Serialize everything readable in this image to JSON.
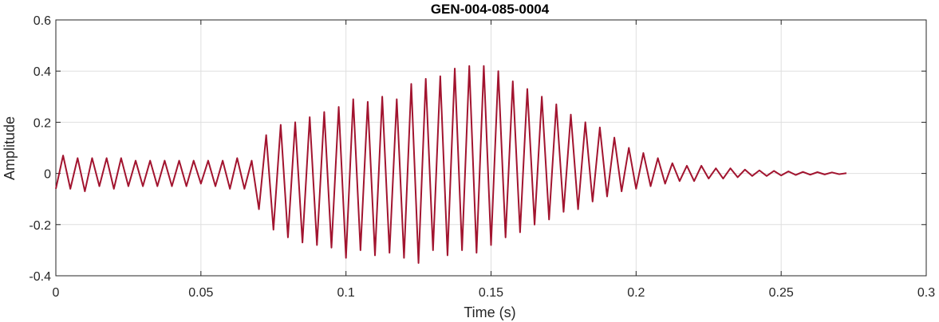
{
  "chart_data": {
    "type": "line",
    "title": "GEN-004-085-0004",
    "xlabel": "Time (s)",
    "ylabel": "Amplitude",
    "xlim": [
      0,
      0.3
    ],
    "ylim": [
      -0.4,
      0.6
    ],
    "xticks": [
      0,
      0.05,
      0.1,
      0.15,
      0.2,
      0.25,
      0.3
    ],
    "xtick_labels": [
      "0",
      "0.05",
      "0.1",
      "0.15",
      "0.2",
      "0.25",
      "0.3"
    ],
    "yticks": [
      -0.4,
      -0.2,
      0,
      0.2,
      0.4,
      0.6
    ],
    "ytick_labels": [
      "-0.4",
      "-0.2",
      "0",
      "0.2",
      "0.4",
      "0.6"
    ],
    "grid": true,
    "line_color": "#A2142F",
    "series": [
      {
        "x": [
          0.0,
          0.0025,
          0.005,
          0.0075,
          0.01,
          0.0125,
          0.015,
          0.0175,
          0.02,
          0.0225,
          0.025,
          0.0275,
          0.03,
          0.0325,
          0.035,
          0.0375,
          0.04,
          0.0425,
          0.045,
          0.0475,
          0.05,
          0.0525,
          0.055,
          0.0575,
          0.06,
          0.0625,
          0.065,
          0.0675,
          0.07,
          0.0725,
          0.075,
          0.0775,
          0.08,
          0.0825,
          0.085,
          0.0875,
          0.09,
          0.0925,
          0.095,
          0.0975,
          0.1,
          0.1025,
          0.105,
          0.1075,
          0.11,
          0.1125,
          0.115,
          0.1175,
          0.12,
          0.1225,
          0.125,
          0.1275,
          0.13,
          0.1325,
          0.135,
          0.1375,
          0.14,
          0.1425,
          0.145,
          0.1475,
          0.15,
          0.1525,
          0.155,
          0.1575,
          0.16,
          0.1625,
          0.165,
          0.1675,
          0.17,
          0.1725,
          0.175,
          0.1775,
          0.18,
          0.1825,
          0.185,
          0.1875,
          0.19,
          0.1925,
          0.195,
          0.1975,
          0.2,
          0.2025,
          0.205,
          0.2075,
          0.21,
          0.2125,
          0.215,
          0.2175,
          0.22,
          0.2225,
          0.225,
          0.2275,
          0.23,
          0.2325,
          0.235,
          0.2375,
          0.24,
          0.2425,
          0.245,
          0.2475,
          0.25,
          0.2525,
          0.255,
          0.2575,
          0.26,
          0.2625,
          0.265,
          0.2675,
          0.27,
          0.2725
        ],
        "y": [
          -0.06,
          0.07,
          -0.06,
          0.06,
          -0.07,
          0.06,
          -0.05,
          0.06,
          -0.06,
          0.06,
          -0.05,
          0.05,
          -0.05,
          0.05,
          -0.05,
          0.05,
          -0.05,
          0.05,
          -0.05,
          0.05,
          -0.04,
          0.05,
          -0.05,
          0.05,
          -0.06,
          0.06,
          -0.06,
          0.05,
          -0.14,
          0.15,
          -0.22,
          0.19,
          -0.25,
          0.2,
          -0.27,
          0.22,
          -0.28,
          0.24,
          -0.29,
          0.26,
          -0.33,
          0.29,
          -0.3,
          0.28,
          -0.32,
          0.3,
          -0.31,
          0.29,
          -0.33,
          0.35,
          -0.35,
          0.37,
          -0.3,
          0.38,
          -0.32,
          0.41,
          -0.3,
          0.42,
          -0.31,
          0.42,
          -0.28,
          0.4,
          -0.25,
          0.36,
          -0.23,
          0.33,
          -0.2,
          0.3,
          -0.18,
          0.27,
          -0.15,
          0.23,
          -0.14,
          0.2,
          -0.11,
          0.18,
          -0.09,
          0.14,
          -0.07,
          0.1,
          -0.06,
          0.08,
          -0.05,
          0.06,
          -0.04,
          0.04,
          -0.03,
          0.03,
          -0.03,
          0.03,
          -0.02,
          0.02,
          -0.02,
          0.02,
          -0.015,
          0.015,
          -0.01,
          0.012,
          -0.01,
          0.01,
          -0.008,
          0.008,
          -0.006,
          0.006,
          -0.005,
          0.005,
          -0.004,
          0.004,
          -0.003,
          0.001
        ]
      }
    ]
  }
}
